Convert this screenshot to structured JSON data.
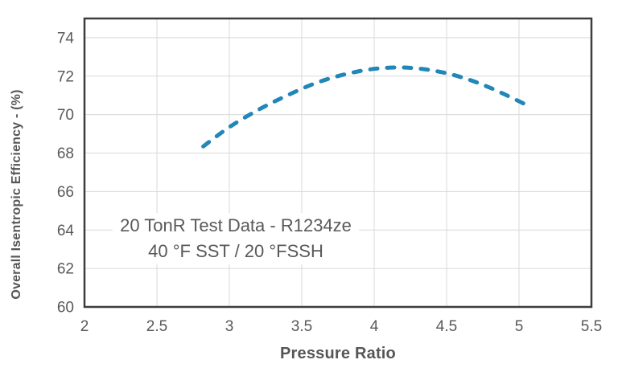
{
  "chart_data": {
    "type": "line",
    "title": "",
    "xlabel": "Pressure Ratio",
    "ylabel": "Overall Isentropic Efficiency - (%)",
    "xlim": [
      2,
      5.5
    ],
    "ylim": [
      60,
      75
    ],
    "x_ticks": [
      2,
      2.5,
      3,
      3.5,
      4,
      4.5,
      5,
      5.5
    ],
    "y_ticks": [
      60,
      62,
      64,
      66,
      68,
      70,
      72,
      74
    ],
    "grid": true,
    "legend_position": "none",
    "series": [
      {
        "name": "overall-isentropic-efficiency",
        "line_style": "dashed",
        "color": "#2186B8",
        "x": [
          2.82,
          3.0,
          3.2,
          3.4,
          3.6,
          3.8,
          4.0,
          4.2,
          4.4,
          4.6,
          4.8,
          5.04
        ],
        "y": [
          68.35,
          69.35,
          70.25,
          71.0,
          71.65,
          72.1,
          72.38,
          72.45,
          72.3,
          71.95,
          71.4,
          70.55
        ]
      }
    ],
    "annotation": {
      "line1": "20 TonR Test Data - R1234ze",
      "line2": "40 °F SST / 20 °FSSH"
    },
    "colors": {
      "background": "#ffffff",
      "grid": "#d9d9d9",
      "axis_border": "#3d3d3d",
      "tick_label": "#595959",
      "axis_title": "#565656",
      "annotation_text": "#595959"
    }
  }
}
